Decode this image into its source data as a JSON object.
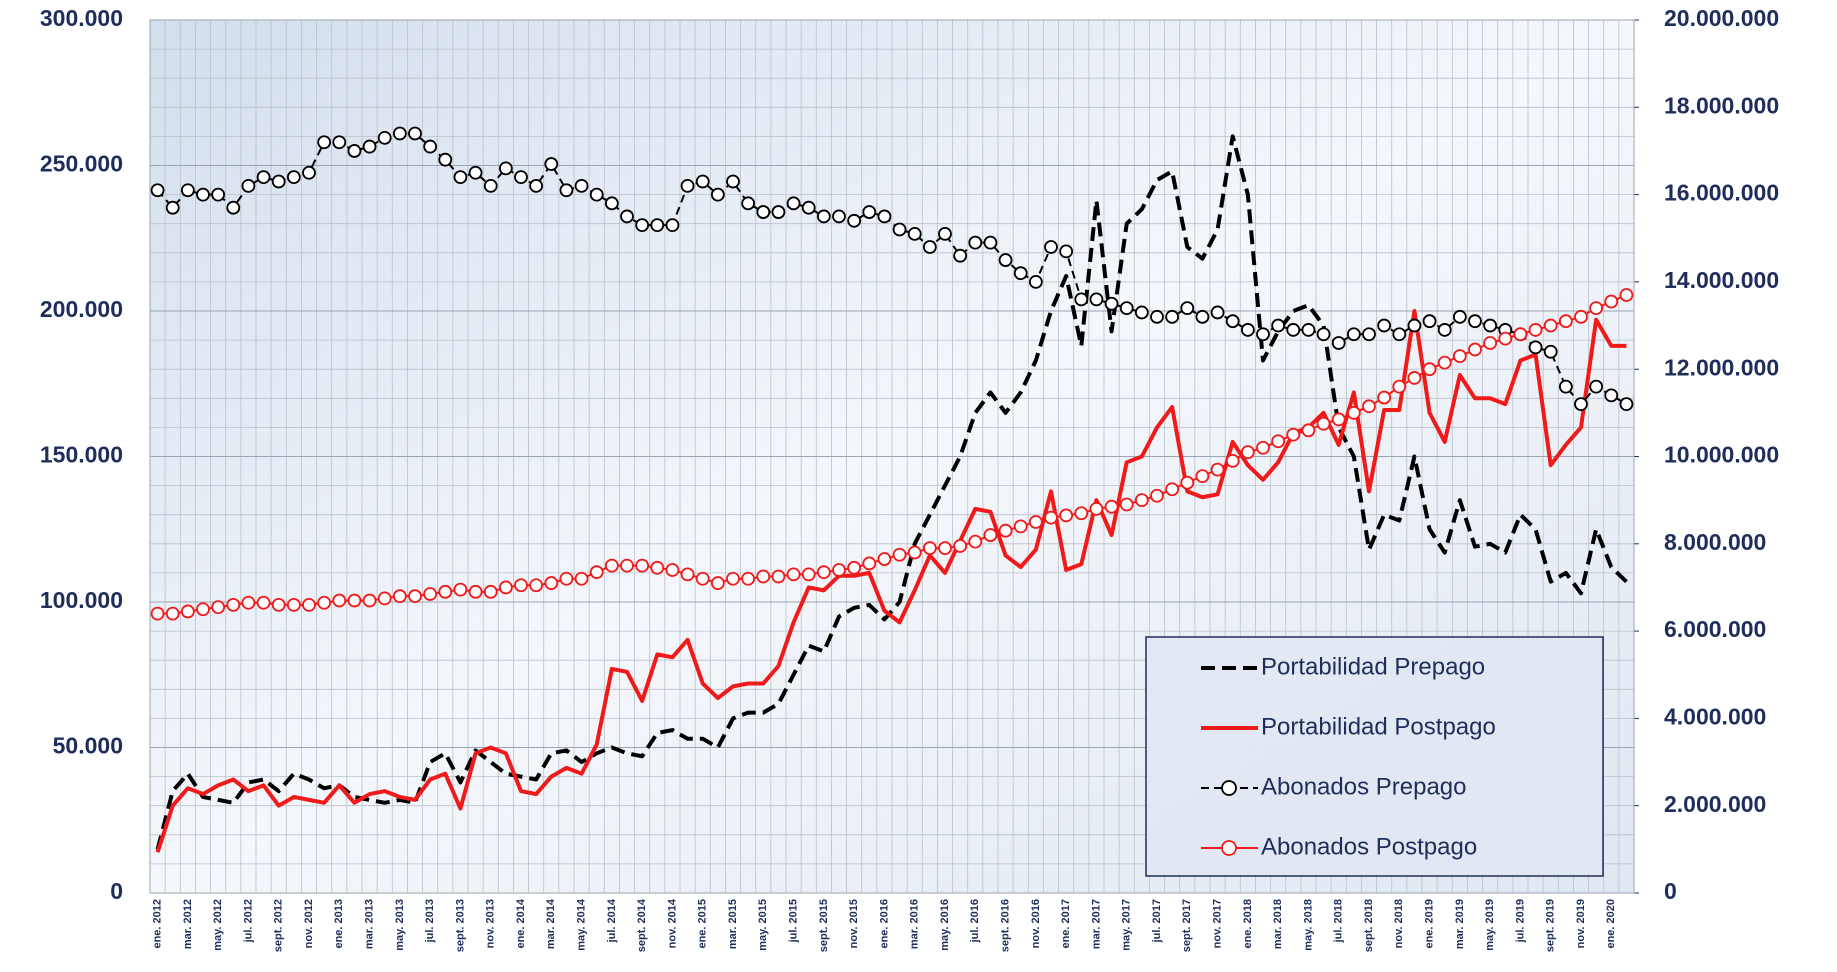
{
  "chart_data": {
    "type": "line",
    "categories": [
      "ene. 2012",
      null,
      "mar. 2012",
      null,
      "may. 2012",
      null,
      "jul. 2012",
      null,
      "sept. 2012",
      null,
      "nov. 2012",
      null,
      "ene. 2013",
      null,
      "mar. 2013",
      null,
      "may. 2013",
      null,
      "jul. 2013",
      null,
      "sept. 2013",
      null,
      "nov. 2013",
      null,
      "ene. 2014",
      null,
      "mar. 2014",
      null,
      "may. 2014",
      null,
      "jul. 2014",
      null,
      "sept. 2014",
      null,
      "nov. 2014",
      null,
      "ene. 2015",
      null,
      "mar. 2015",
      null,
      "may. 2015",
      null,
      "jul. 2015",
      null,
      "sept. 2015",
      null,
      "nov. 2015",
      null,
      "ene. 2016",
      null,
      "mar. 2016",
      null,
      "may. 2016",
      null,
      "jul. 2016",
      null,
      "sept. 2016",
      null,
      "nov. 2016",
      null,
      "ene. 2017",
      null,
      "mar. 2017",
      null,
      "may. 2017",
      null,
      "jul. 2017",
      null,
      "sept. 2017",
      null,
      "nov. 2017",
      null,
      "ene. 2018",
      null,
      "mar. 2018",
      null,
      "may. 2018",
      null,
      "jul. 2018",
      null,
      "sept. 2018",
      null,
      "nov. 2018",
      null,
      "ene. 2019",
      null,
      "mar. 2019",
      null,
      "may. 2019",
      null,
      "jul. 2019",
      null,
      "sept. 2019",
      null,
      "nov. 2019",
      null,
      "ene. 2020",
      null
    ],
    "series": [
      {
        "name": "Portabilidad Prepago",
        "color": "#000000",
        "line_style": "dashed",
        "marker": null,
        "axis": "y",
        "values": [
          15000,
          35000,
          41000,
          33000,
          32000,
          31000,
          38000,
          39000,
          35000,
          41000,
          39000,
          36000,
          37000,
          33000,
          32000,
          31000,
          32000,
          31000,
          45000,
          48000,
          38000,
          49000,
          45000,
          41000,
          40000,
          39000,
          48000,
          49000,
          45000,
          48000,
          50000,
          48000,
          47000,
          55000,
          56000,
          53000,
          53000,
          50000,
          60000,
          62000,
          62000,
          65000,
          75000,
          85000,
          83000,
          95000,
          98000,
          99000,
          94000,
          100000,
          120000,
          130000,
          140000,
          150000,
          165000,
          172000,
          165000,
          172000,
          183000,
          200000,
          212000,
          188000,
          238000,
          193000,
          230000,
          235000,
          245000,
          248000,
          222000,
          218000,
          228000,
          260000,
          240000,
          183000,
          193000,
          200000,
          202000,
          195000,
          160000,
          150000,
          118000,
          130000,
          128000,
          150000,
          125000,
          117000,
          135000,
          119000,
          120000,
          117000,
          130000,
          125000,
          107000,
          110000,
          103000,
          125000,
          112000,
          107000
        ]
      },
      {
        "name": "Portabilidad Postpago",
        "color": "#f01a1a",
        "line_style": "solid",
        "marker": null,
        "axis": "y",
        "values": [
          14000,
          30000,
          36000,
          34000,
          37000,
          39000,
          35000,
          37000,
          30000,
          33000,
          32000,
          31000,
          37000,
          31000,
          34000,
          35000,
          33000,
          32000,
          39000,
          41000,
          29000,
          48000,
          50000,
          48000,
          35000,
          34000,
          40000,
          43000,
          41000,
          51000,
          77000,
          76000,
          66000,
          82000,
          81000,
          87000,
          72000,
          67000,
          71000,
          72000,
          72000,
          78000,
          93000,
          105000,
          104000,
          109000,
          109000,
          110000,
          97000,
          93000,
          104000,
          116000,
          110000,
          121000,
          132000,
          131000,
          116000,
          112000,
          118000,
          138000,
          111000,
          113000,
          135000,
          123000,
          148000,
          150000,
          160000,
          167000,
          138000,
          136000,
          137000,
          155000,
          147000,
          142000,
          148000,
          158000,
          160000,
          165000,
          154000,
          172000,
          138000,
          166000,
          166000,
          200000,
          165000,
          155000,
          178000,
          170000,
          170000,
          168000,
          183000,
          185000,
          147000,
          154000,
          160000,
          197000,
          188000,
          188000
        ]
      },
      {
        "name": "Abonados Prepago",
        "color": "#000000",
        "line_style": "dashed",
        "marker": "circle",
        "axis": "y2",
        "values": [
          16100000,
          15700000,
          16100000,
          16000000,
          16000000,
          15700000,
          16200000,
          16400000,
          16300000,
          16400000,
          16500000,
          17200000,
          17200000,
          17000000,
          17100000,
          17300000,
          17400000,
          17400000,
          17100000,
          16800000,
          16400000,
          16500000,
          16200000,
          16600000,
          16400000,
          16200000,
          16700000,
          16100000,
          16200000,
          16000000,
          15800000,
          15500000,
          15300000,
          15300000,
          15300000,
          16200000,
          16300000,
          16000000,
          16300000,
          15800000,
          15600000,
          15600000,
          15800000,
          15700000,
          15500000,
          15500000,
          15400000,
          15600000,
          15500000,
          15200000,
          15100000,
          14800000,
          15100000,
          14600000,
          14900000,
          14900000,
          14500000,
          14200000,
          14000000,
          14800000,
          14700000,
          13600000,
          13600000,
          13500000,
          13400000,
          13300000,
          13200000,
          13200000,
          13400000,
          13200000,
          13300000,
          13100000,
          12900000,
          12800000,
          13000000,
          12900000,
          12900000,
          12800000,
          12600000,
          12800000,
          12800000,
          13000000,
          12800000,
          13000000,
          13100000,
          12900000,
          13200000,
          13100000,
          13000000,
          12900000,
          12800000,
          12500000,
          12400000,
          11600000,
          11200000,
          11600000,
          11400000,
          11200000
        ]
      },
      {
        "name": "Abonados Postpago",
        "color": "#f01a1a",
        "line_style": "solid",
        "marker": "circle",
        "axis": "y2",
        "values": [
          6400000,
          6400000,
          6450000,
          6500000,
          6550000,
          6600000,
          6650000,
          6650000,
          6600000,
          6600000,
          6600000,
          6650000,
          6700000,
          6700000,
          6700000,
          6750000,
          6800000,
          6800000,
          6850000,
          6900000,
          6950000,
          6900000,
          6900000,
          7000000,
          7050000,
          7050000,
          7100000,
          7200000,
          7200000,
          7350000,
          7500000,
          7500000,
          7500000,
          7450000,
          7400000,
          7300000,
          7200000,
          7100000,
          7200000,
          7200000,
          7250000,
          7250000,
          7300000,
          7300000,
          7350000,
          7400000,
          7450000,
          7550000,
          7650000,
          7750000,
          7800000,
          7900000,
          7900000,
          7950000,
          8050000,
          8200000,
          8300000,
          8400000,
          8500000,
          8600000,
          8650000,
          8700000,
          8800000,
          8850000,
          8900000,
          9000000,
          9100000,
          9250000,
          9400000,
          9550000,
          9700000,
          9900000,
          10100000,
          10200000,
          10350000,
          10500000,
          10600000,
          10750000,
          10850000,
          11000000,
          11150000,
          11350000,
          11600000,
          11800000,
          12000000,
          12150000,
          12300000,
          12450000,
          12600000,
          12700000,
          12800000,
          12900000,
          13000000,
          13100000,
          13200000,
          13400000,
          13550000,
          13700000
        ]
      }
    ],
    "ylim": [
      0,
      300000
    ],
    "yticks": [
      0,
      {
        "value": 50000,
        "label": "50.000"
      },
      {
        "value": 100000,
        "label": "100.000"
      },
      {
        "value": 150000,
        "label": "150.000"
      },
      {
        "value": 200000,
        "label": "200.000"
      },
      {
        "value": 250000,
        "label": "250.000"
      },
      {
        "value": 300000,
        "label": "300.000"
      }
    ],
    "y2lim": [
      0,
      20000000
    ],
    "y2ticks": [
      0,
      {
        "value": 2000000,
        "label": "2.000.000"
      },
      {
        "value": 4000000,
        "label": "4.000.000"
      },
      {
        "value": 6000000,
        "label": "6.000.000"
      },
      {
        "value": 8000000,
        "label": "8.000.000"
      },
      {
        "value": 10000000,
        "label": "10.000.000"
      },
      {
        "value": 12000000,
        "label": "12.000.000"
      },
      {
        "value": 14000000,
        "label": "14.000.000"
      },
      {
        "value": 16000000,
        "label": "16.000.000"
      },
      {
        "value": 18000000,
        "label": "18.000.000"
      },
      {
        "value": 20000000,
        "label": "20.000.000"
      }
    ],
    "grid": true,
    "legend": "lower right"
  }
}
